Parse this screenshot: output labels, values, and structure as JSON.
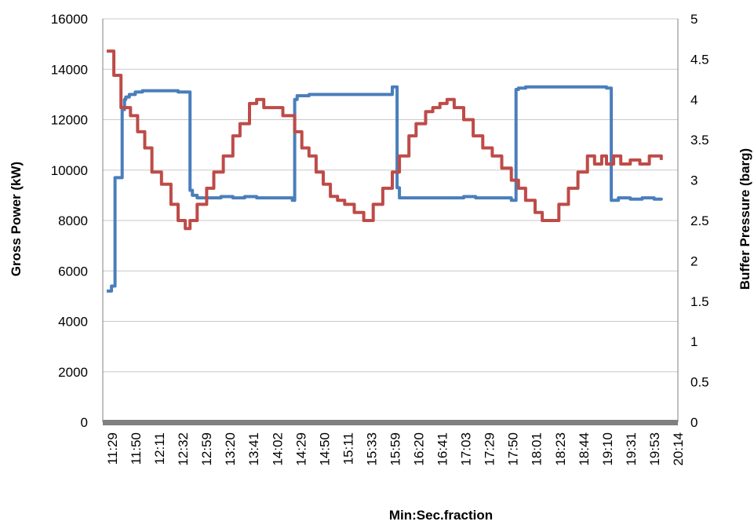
{
  "chart_data": {
    "type": "line",
    "title": "",
    "xlabel": "Min:Sec.fraction",
    "ylabel_left": "Gross Power (kW)",
    "ylabel_right": "Buffer Pressure (barg)",
    "ylim_left": [
      0,
      16000
    ],
    "ylim_right": [
      0,
      5
    ],
    "yticks_left": [
      "16000",
      "14000",
      "12000",
      "10000",
      "8000",
      "6000",
      "4000",
      "2000",
      "0"
    ],
    "yticks_right": [
      "5",
      "4.5",
      "4",
      "3.5",
      "3",
      "2.5",
      "2",
      "1.5",
      "1",
      "0.5",
      "0"
    ],
    "categories": [
      "11:29",
      "11:50",
      "12:11",
      "12:32",
      "12:59",
      "13:20",
      "13:41",
      "14:02",
      "14:29",
      "14:50",
      "15:11",
      "15:33",
      "15:59",
      "16:20",
      "16:41",
      "17:03",
      "17:29",
      "17:50",
      "18:01",
      "18:23",
      "18:44",
      "19:10",
      "19:31",
      "19:53",
      "20:14"
    ],
    "grid": true,
    "legend": "none",
    "series": [
      {
        "axis": "left",
        "color": "#4a7ebb",
        "x": [
          0,
          0.2,
          0.3,
          0.35,
          0.5,
          0.6,
          0.65,
          0.75,
          0.8,
          0.95,
          1.2,
          1.5,
          2,
          2.5,
          3,
          3.4,
          3.5,
          3.6,
          3.8,
          4,
          4.3,
          4.8,
          5.3,
          5.8,
          6.3,
          6.8,
          7.3,
          7.8,
          7.9,
          8.0,
          8.1,
          8.2,
          8.5,
          9,
          9.5,
          10,
          10.5,
          11,
          11.5,
          12,
          12.1,
          12.2,
          12.3,
          12.5,
          13,
          13.5,
          14,
          14.5,
          15,
          15.5,
          16,
          16.5,
          17,
          17.1,
          17.2,
          17.3,
          17.6,
          18,
          18.5,
          19,
          19.5,
          20,
          20.5,
          21,
          21.1,
          21.2,
          21.5,
          22,
          22.5,
          23,
          23.3
        ],
        "values": [
          5200,
          5400,
          5400,
          9700,
          9700,
          9700,
          12400,
          12800,
          12900,
          13000,
          13100,
          13150,
          13150,
          13150,
          13100,
          13100,
          9200,
          9000,
          8900,
          8900,
          8900,
          8950,
          8900,
          8950,
          8900,
          8900,
          8900,
          8800,
          12800,
          12950,
          12950,
          12950,
          13000,
          13000,
          13000,
          13000,
          13000,
          13000,
          13000,
          13300,
          13300,
          9300,
          8900,
          8900,
          8900,
          8900,
          8900,
          8900,
          8950,
          8900,
          8900,
          8900,
          8800,
          8800,
          13200,
          13250,
          13300,
          13300,
          13300,
          13300,
          13300,
          13300,
          13300,
          13250,
          13250,
          8800,
          8900,
          8850,
          8900,
          8850,
          8900
        ]
      },
      {
        "axis": "right",
        "color": "#be4b48",
        "x": [
          0,
          0.3,
          0.6,
          1.0,
          1.3,
          1.6,
          1.9,
          2.3,
          2.7,
          3.0,
          3.3,
          3.5,
          3.8,
          4.2,
          4.5,
          4.9,
          5.3,
          5.6,
          6.0,
          6.3,
          6.6,
          7.0,
          7.4,
          7.9,
          8.2,
          8.5,
          8.8,
          9.1,
          9.4,
          9.7,
          10.0,
          10.4,
          10.8,
          11.2,
          11.6,
          12.0,
          12.3,
          12.7,
          13.0,
          13.4,
          13.7,
          14.0,
          14.3,
          14.6,
          15.0,
          15.4,
          15.8,
          16.2,
          16.6,
          17.0,
          17.3,
          17.6,
          18.0,
          18.3,
          18.6,
          19.0,
          19.4,
          19.8,
          20.2,
          20.5,
          20.8,
          21.0,
          21.3,
          21.6,
          22.0,
          22.4,
          22.8,
          23.3
        ],
        "values": [
          4.6,
          4.3,
          3.9,
          3.8,
          3.6,
          3.4,
          3.1,
          2.95,
          2.7,
          2.5,
          2.4,
          2.5,
          2.7,
          2.9,
          3.1,
          3.3,
          3.55,
          3.7,
          3.95,
          4.0,
          3.9,
          3.9,
          3.8,
          3.6,
          3.4,
          3.3,
          3.1,
          2.95,
          2.8,
          2.75,
          2.7,
          2.6,
          2.5,
          2.7,
          2.9,
          3.1,
          3.3,
          3.55,
          3.7,
          3.85,
          3.9,
          3.95,
          4.0,
          3.9,
          3.75,
          3.55,
          3.4,
          3.3,
          3.15,
          3.0,
          2.9,
          2.75,
          2.6,
          2.5,
          2.5,
          2.7,
          2.9,
          3.1,
          3.3,
          3.2,
          3.3,
          3.2,
          3.3,
          3.2,
          3.25,
          3.2,
          3.3,
          3.25
        ]
      }
    ]
  }
}
